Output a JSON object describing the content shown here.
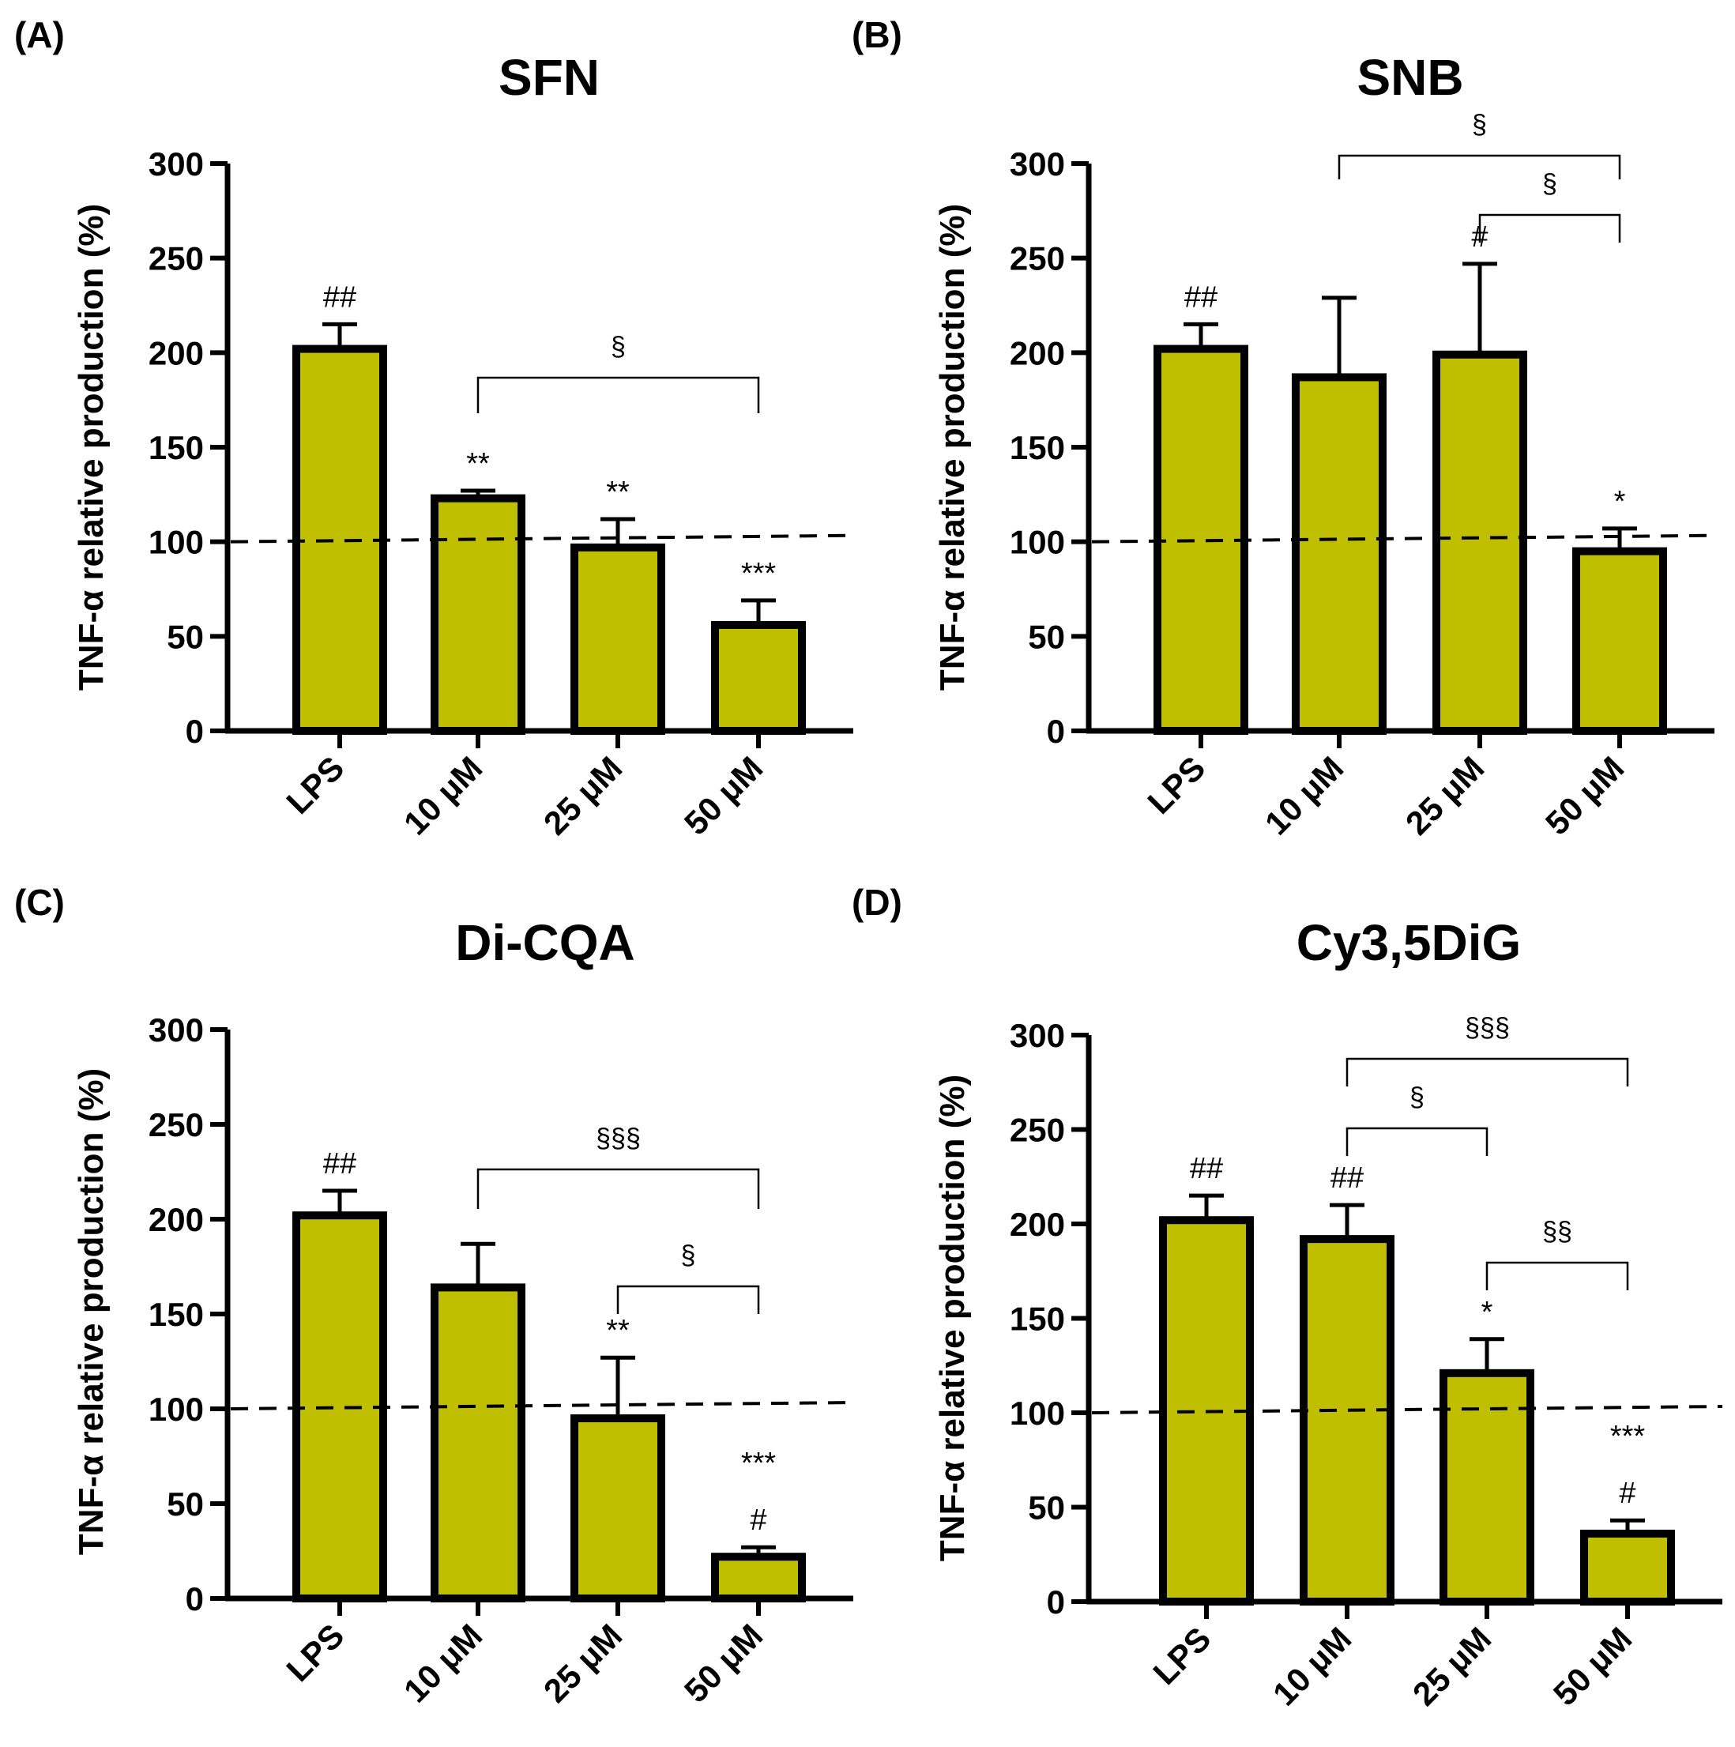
{
  "style": {
    "bar_fill": "#bfbf00",
    "bar_edge": "#000000",
    "axis_color": "#000000",
    "text_color": "#000000"
  },
  "chart_data": [
    {
      "panel_label": "(A)",
      "type": "bar",
      "title": "SFN",
      "ylabel": "TNF-α relative production (%)",
      "xlabel": "",
      "ylim": [
        0,
        300
      ],
      "yticks": [
        "0",
        "50",
        "100",
        "150",
        "200",
        "250",
        "300"
      ],
      "categories": [
        "LPS",
        "10 μM",
        "25 μM",
        "50 μM"
      ],
      "values": [
        202,
        123,
        97,
        56
      ],
      "errors": [
        13,
        4,
        15,
        13
      ],
      "reference_line": 100,
      "annotations": [
        "##",
        "**",
        "**",
        "***"
      ],
      "brackets": [
        {
          "from": 1,
          "to": 3,
          "label": "§"
        }
      ]
    },
    {
      "panel_label": "(B)",
      "type": "bar",
      "title": "SNB",
      "ylabel": "TNF-α relative production (%)",
      "xlabel": "",
      "ylim": [
        0,
        300
      ],
      "yticks": [
        "0",
        "50",
        "100",
        "150",
        "200",
        "250",
        "300"
      ],
      "categories": [
        "LPS",
        "10 μM",
        "25 μM",
        "50 μM"
      ],
      "values": [
        202,
        187,
        199,
        95
      ],
      "errors": [
        13,
        42,
        48,
        12
      ],
      "reference_line": 100,
      "annotations": [
        "##",
        "",
        "#",
        "*"
      ],
      "brackets": [
        {
          "from": 1,
          "to": 3,
          "label": "§"
        },
        {
          "from": 2,
          "to": 3,
          "label": "§"
        }
      ]
    },
    {
      "panel_label": "(C)",
      "type": "bar",
      "title": "Di-CQA",
      "ylabel": "TNF-α relative production (%)",
      "xlabel": "",
      "ylim": [
        0,
        300
      ],
      "yticks": [
        "0",
        "50",
        "100",
        "150",
        "200",
        "250",
        "300"
      ],
      "categories": [
        "LPS",
        "10 μM",
        "25 μM",
        "50 μM"
      ],
      "values": [
        202,
        164,
        95,
        22
      ],
      "errors": [
        13,
        23,
        32,
        5
      ],
      "reference_line": 100,
      "annotations": [
        "##",
        "",
        "**",
        "***\n#"
      ],
      "brackets": [
        {
          "from": 1,
          "to": 3,
          "label": "§§§"
        },
        {
          "from": 2,
          "to": 3,
          "label": "§"
        }
      ]
    },
    {
      "panel_label": "(D)",
      "type": "bar",
      "title": "Cy3,5DiG",
      "ylabel": "TNF-α relative production (%)",
      "xlabel": "",
      "ylim": [
        0,
        300
      ],
      "yticks": [
        "0",
        "50",
        "100",
        "150",
        "200",
        "250",
        "300"
      ],
      "categories": [
        "LPS",
        "10 μM",
        "25 μM",
        "50 μM"
      ],
      "values": [
        202,
        192,
        121,
        36
      ],
      "errors": [
        13,
        18,
        18,
        7
      ],
      "reference_line": 100,
      "annotations": [
        "##",
        "##",
        "*",
        "***\n#"
      ],
      "brackets": [
        {
          "from": 1,
          "to": 3,
          "label": "§§§"
        },
        {
          "from": 1,
          "to": 2,
          "label": "§"
        },
        {
          "from": 2,
          "to": 3,
          "label": "§§"
        }
      ]
    }
  ]
}
